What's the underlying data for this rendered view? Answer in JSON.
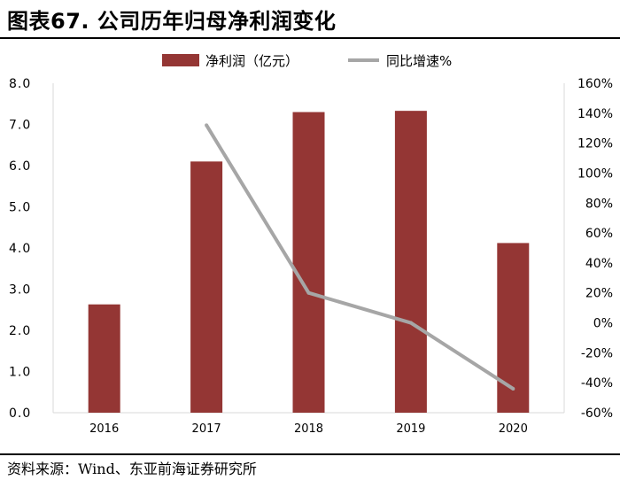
{
  "title": "图表67. 公司历年归母净利润变化",
  "source": "资料来源：Wind、东亚前海证券研究所",
  "colors": {
    "bar": "#943634",
    "line": "#a6a6a6",
    "axis": "#d9d9d9"
  },
  "chart_data": {
    "type": "bar",
    "categories": [
      "2016",
      "2017",
      "2018",
      "2019",
      "2020"
    ],
    "series": [
      {
        "name": "净利润（亿元）",
        "type": "bar",
        "axis": "left",
        "values": [
          2.63,
          6.1,
          7.3,
          7.33,
          4.12
        ]
      },
      {
        "name": "同比增速%",
        "type": "line",
        "axis": "right",
        "values": [
          null,
          132,
          20,
          0,
          -44
        ]
      }
    ],
    "yleft": {
      "min": 0,
      "max": 8,
      "step": 1,
      "ticks": [
        "0.0",
        "1.0",
        "2.0",
        "3.0",
        "4.0",
        "5.0",
        "6.0",
        "7.0",
        "8.0"
      ]
    },
    "yright": {
      "min": -60,
      "max": 160,
      "step": 20,
      "ticks": [
        "-60%",
        "-40%",
        "-20%",
        "0%",
        "20%",
        "40%",
        "60%",
        "80%",
        "100%",
        "120%",
        "140%",
        "160%"
      ]
    },
    "legend": "top-center",
    "grid": false
  }
}
